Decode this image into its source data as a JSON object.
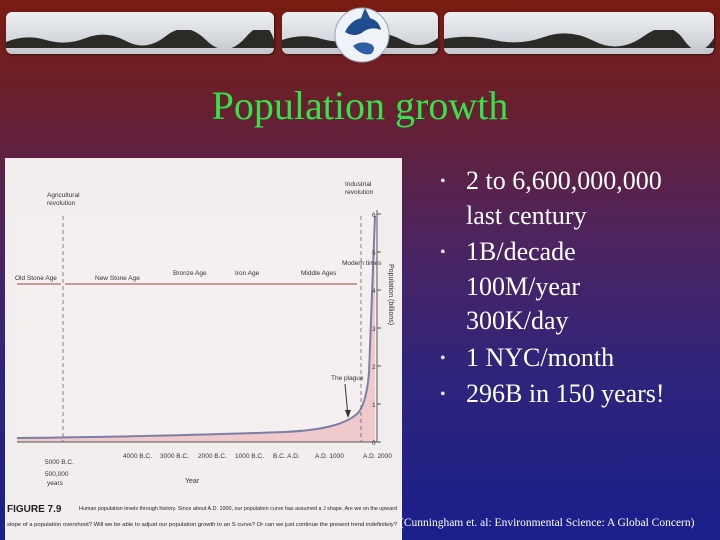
{
  "slide": {
    "title": "Population growth",
    "bullets": [
      {
        "lines": [
          "2 to 6,600,000,000",
          "last century"
        ]
      },
      {
        "lines": [
          "1B/decade",
          "100M/year",
          "300K/day"
        ]
      },
      {
        "lines": [
          "1 NYC/month"
        ]
      },
      {
        "lines": [
          "296B in 150 years!"
        ]
      }
    ],
    "citation": "(Cunningham et. al: Environmental Science: A Global Concern)"
  },
  "figure": {
    "eras": [
      "Old Stone Age",
      "New Stone Age",
      "Bronze Age",
      "Iron Age",
      "Middle Ages",
      "Modern times"
    ],
    "markers": {
      "agricultural": [
        "Agricultural",
        "revolution"
      ],
      "industrial": [
        "Industrial",
        "revolution"
      ],
      "plague": "The plague"
    },
    "x_ticks": [
      "4000 B.C.",
      "3000 B.C.",
      "2000 B.C.",
      "1000 B.C.",
      "B.C. A.D.",
      "A.D. 1000",
      "A.D. 2000"
    ],
    "x_start": [
      "5000 B.C.",
      "500,000",
      "years"
    ],
    "x_axis_label": "Year",
    "y_ticks": [
      "0",
      "1",
      "2",
      "3",
      "4",
      "5",
      "6"
    ],
    "y_axis_label": "Population (billions)",
    "caption_prefix": "FIGURE 7.9",
    "caption_lines": [
      "Human population levels through history. Since about A.D. 1000, our population curve has assumed a J shape. Are we on the upward",
      "slope of a population overshoot? Will we be able to adjust our population growth to an S curve? Or can we just continue the present trend indefinitely?"
    ]
  },
  "colors": {
    "title": "#33e34a",
    "text": "#ffffff",
    "plot_fill": "#efc9cb",
    "curve": "#7a7fa6"
  }
}
